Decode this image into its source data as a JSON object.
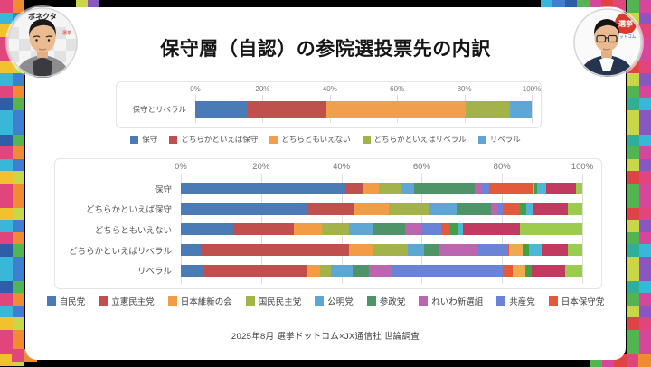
{
  "meta": {
    "title": "保守層（自認）の参院選投票先の内訳",
    "caption": "2025年8月 選挙ドットコム×JX通信社 世論調査"
  },
  "avatars": {
    "left_backdrop_text": "ボネクタ",
    "right_logo_text": "選挙"
  },
  "decor_tile_colors": [
    "#e0457b",
    "#3e7fd0",
    "#f2c12e",
    "#53b552",
    "#8a56c0",
    "#e04343",
    "#38b8d8",
    "#ef8c33",
    "#2f5ea8",
    "#c8d648",
    "#d6479a",
    "#2fae9a"
  ],
  "chart_data": [
    {
      "type": "bar",
      "subtype": "horizontal-stacked-percent",
      "title": "",
      "categories": [
        "保守とリベラル"
      ],
      "x_ticks": [
        "0%",
        "20%",
        "40%",
        "60%",
        "80%",
        "100%"
      ],
      "xlim": [
        0,
        100
      ],
      "grid": true,
      "legend_position": "bottom",
      "series": [
        {
          "name": "保守",
          "color": "#4a7bb5",
          "in_legend": true,
          "values": [
            15.5
          ]
        },
        {
          "name": "どちらかといえば保守",
          "color": "#c0504d",
          "in_legend": true,
          "values": [
            23.5
          ]
        },
        {
          "name": "どちらともいえない",
          "color": "#f0a04c",
          "in_legend": true,
          "values": [
            41.5
          ]
        },
        {
          "name": "どちらかといえばリベラル",
          "color": "#a4b24a",
          "in_legend": true,
          "values": [
            13.0
          ]
        },
        {
          "name": "リベラル",
          "color": "#5ea6d4",
          "in_legend": true,
          "values": [
            6.5
          ]
        }
      ]
    },
    {
      "type": "bar",
      "subtype": "horizontal-stacked-percent",
      "title": "",
      "categories": [
        "保守",
        "どちらかといえば保守",
        "どちらともいえない",
        "どちらかといえばリベラル",
        "リベラル"
      ],
      "x_ticks": [
        "0%",
        "20%",
        "40%",
        "60%",
        "80%",
        "100%"
      ],
      "xlim": [
        0,
        100
      ],
      "grid": true,
      "legend_position": "bottom",
      "series": [
        {
          "name": "自民党",
          "color": "#4a7bb5",
          "in_legend": true,
          "values": [
            41.0,
            31.8,
            13.1,
            5.2,
            5.9
          ]
        },
        {
          "name": "立憲民主党",
          "color": "#c0504d",
          "in_legend": true,
          "values": [
            4.6,
            11.3,
            15.0,
            36.6,
            25.4
          ]
        },
        {
          "name": "日本維新の会",
          "color": "#f09d45",
          "in_legend": true,
          "values": [
            3.8,
            8.6,
            7.1,
            6.2,
            3.3
          ]
        },
        {
          "name": "国民民主党",
          "color": "#a4b24a",
          "in_legend": true,
          "values": [
            5.5,
            10.2,
            6.8,
            8.5,
            2.9
          ]
        },
        {
          "name": "公明党",
          "color": "#5ea6d4",
          "in_legend": true,
          "values": [
            3.3,
            6.7,
            6.0,
            4.1,
            5.3
          ]
        },
        {
          "name": "参政党",
          "color": "#4f9368",
          "in_legend": true,
          "values": [
            14.9,
            8.6,
            7.9,
            3.8,
            4.1
          ]
        },
        {
          "name": "れいわ新選組",
          "color": "#bb66ae",
          "in_legend": true,
          "values": [
            2.0,
            1.9,
            4.1,
            9.8,
            5.6
          ]
        },
        {
          "name": "共産党",
          "color": "#6b83d6",
          "in_legend": true,
          "values": [
            1.7,
            1.1,
            4.9,
            7.4,
            27.8
          ]
        },
        {
          "name": "日本保守党",
          "color": "#e2593c",
          "in_legend": true,
          "values": [
            10.8,
            4.3,
            2.3,
            0.2,
            2.3
          ]
        },
        {
          "name": "",
          "color": "#f0a952",
          "in_legend": false,
          "values": [
            0.5,
            0.0,
            0.0,
            3.4,
            3.3
          ]
        },
        {
          "name": "",
          "color": "#43a047",
          "in_legend": false,
          "values": [
            0.7,
            1.6,
            1.9,
            1.6,
            1.6
          ]
        },
        {
          "name": "",
          "color": "#4db8d6",
          "in_legend": false,
          "values": [
            2.3,
            1.8,
            1.1,
            3.4,
            0.0
          ]
        },
        {
          "name": "",
          "color": "#c13a60",
          "in_legend": false,
          "values": [
            7.4,
            8.5,
            14.3,
            6.2,
            8.2
          ]
        },
        {
          "name": "",
          "color": "#9ccc4e",
          "in_legend": false,
          "values": [
            1.5,
            3.6,
            15.5,
            3.6,
            4.3
          ]
        }
      ]
    }
  ]
}
